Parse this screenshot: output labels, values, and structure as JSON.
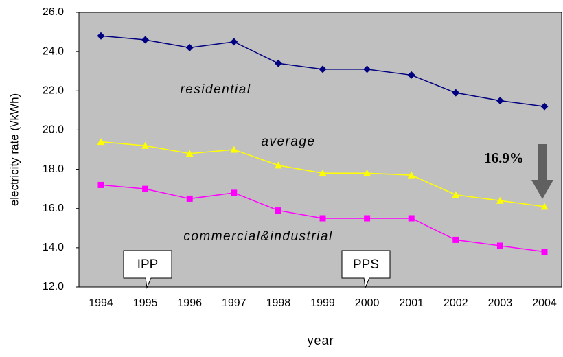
{
  "chart_data": {
    "type": "line",
    "xlabel": "year",
    "ylabel": "electricity rate (\\/kWh)",
    "categories": [
      "1994",
      "1995",
      "1996",
      "1997",
      "1998",
      "1999",
      "2000",
      "2001",
      "2002",
      "2003",
      "2004"
    ],
    "series": [
      {
        "name": "residential",
        "color": "#000080",
        "marker": "diamond",
        "values": [
          24.8,
          24.6,
          24.2,
          24.5,
          23.4,
          23.1,
          23.1,
          22.8,
          21.9,
          21.5,
          21.2
        ]
      },
      {
        "name": "average",
        "color": "#ffff00",
        "marker": "triangle",
        "values": [
          19.4,
          19.2,
          18.8,
          19.0,
          18.2,
          17.8,
          17.8,
          17.7,
          16.7,
          16.4,
          16.1
        ]
      },
      {
        "name": "commercial&industrial",
        "color": "#ff00ff",
        "marker": "square",
        "values": [
          17.2,
          17.0,
          16.5,
          16.8,
          15.9,
          15.5,
          15.5,
          15.5,
          14.4,
          14.1,
          13.8
        ]
      }
    ],
    "ylim": [
      12,
      26
    ],
    "yticks": [
      {
        "value": 12,
        "label": "12.0"
      },
      {
        "value": 14,
        "label": "14.0"
      },
      {
        "value": 16,
        "label": "16.0"
      },
      {
        "value": 18,
        "label": "18.0"
      },
      {
        "value": 20,
        "label": "20.0"
      },
      {
        "value": 22,
        "label": "22.0"
      },
      {
        "value": 24,
        "label": "24.0"
      },
      {
        "value": 26,
        "label": "26.0"
      }
    ],
    "annotations": [
      "16.9%",
      "IPP",
      "PPS"
    ],
    "plot_background": "#c0c0c0"
  }
}
